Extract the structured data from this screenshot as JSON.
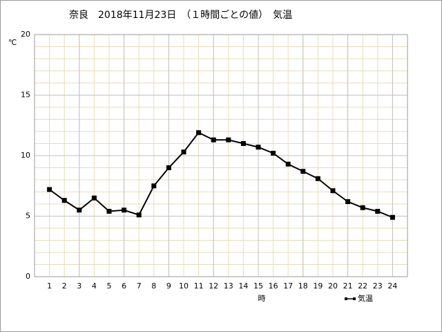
{
  "chart_data": {
    "type": "line",
    "title": "奈良　2018年11月23日　（１時間ごとの値）　気温",
    "y_label": "℃",
    "x_label": "時",
    "x": [
      1,
      2,
      3,
      4,
      5,
      6,
      7,
      8,
      9,
      10,
      11,
      12,
      13,
      14,
      15,
      16,
      17,
      18,
      19,
      20,
      21,
      22,
      23,
      24
    ],
    "series": [
      {
        "name": "気温",
        "color": "#000000",
        "values": [
          7.2,
          6.3,
          5.5,
          6.5,
          5.4,
          5.5,
          5.1,
          7.5,
          9.0,
          10.3,
          11.9,
          11.3,
          11.3,
          11.0,
          10.7,
          10.2,
          9.3,
          8.7,
          8.1,
          7.1,
          6.2,
          5.7,
          5.4,
          4.9
        ]
      }
    ],
    "xlim": [
      0,
      25
    ],
    "xticks": [
      1,
      2,
      3,
      4,
      5,
      6,
      7,
      8,
      9,
      10,
      11,
      12,
      13,
      14,
      15,
      16,
      17,
      18,
      19,
      20,
      21,
      22,
      23,
      24
    ],
    "xmajorgrid": [
      3,
      6,
      9,
      12,
      15,
      18,
      21,
      24
    ],
    "ylim": [
      0,
      20
    ],
    "yticks": [
      0,
      5,
      10,
      15,
      20
    ],
    "yminorticks": [
      1,
      2,
      3,
      4,
      6,
      7,
      8,
      9,
      11,
      12,
      13,
      14,
      16,
      17,
      18,
      19
    ],
    "grid": true,
    "minor_grid_color": "#e8dcb8",
    "major_grid_color": "#c0c0c0",
    "legend": "lower right"
  }
}
